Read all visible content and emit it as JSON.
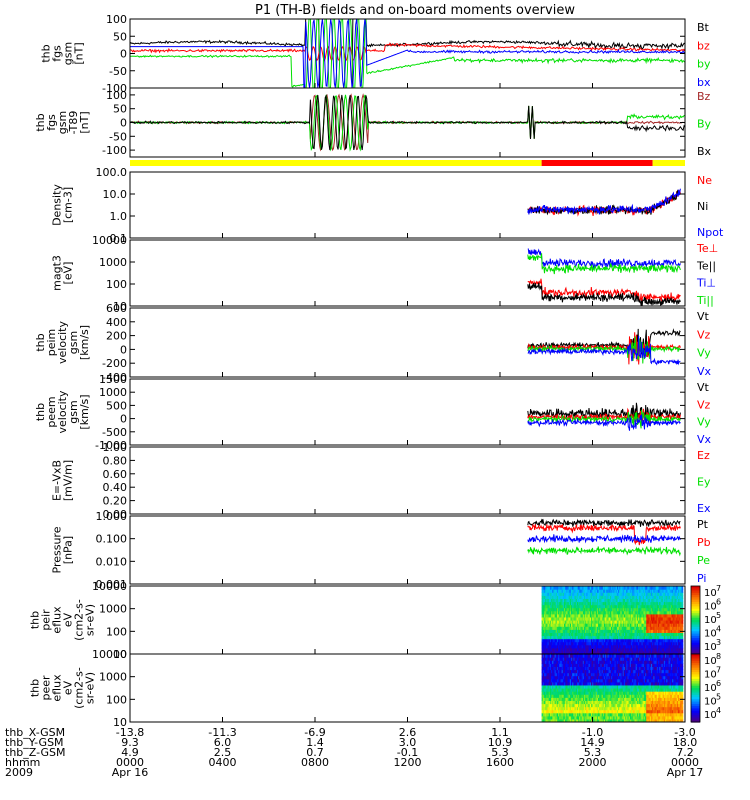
{
  "title": "P1 (TH-B) fields and on-board moments overview",
  "colors": {
    "black": "#000000",
    "red": "#ff0000",
    "green": "#00e000",
    "blue": "#0000ff",
    "yellow": "#ffff00"
  },
  "chart_data": [
    {
      "type": "line",
      "ylabel": [
        "thb",
        "fgs",
        "gsm",
        "[nT]"
      ],
      "ylim": [
        -100,
        100
      ],
      "yticks": [
        "100",
        "50",
        "0",
        "-50",
        "-100"
      ],
      "series": [
        {
          "name": "Bt",
          "color": "#000000"
        },
        {
          "name": "bz",
          "color": "#ff0000"
        },
        {
          "name": "by",
          "color": "#00e000"
        },
        {
          "name": "bx",
          "color": "#0000ff"
        }
      ]
    },
    {
      "type": "line",
      "ylabel": [
        "thb",
        "fgs",
        "gsm",
        "-T89",
        "[nT]"
      ],
      "ylim": [
        -125,
        125
      ],
      "yticks": [
        "100",
        "50",
        "0",
        "-50",
        "-100"
      ],
      "series": [
        {
          "name": "Bz",
          "color": "#a52a2a"
        },
        {
          "name": "By",
          "color": "#00e000"
        },
        {
          "name": "Bx",
          "color": "#000000"
        }
      ]
    },
    {
      "type": "line",
      "ylabel": [
        "Density",
        "[cm-3]"
      ],
      "ylim": [
        0.1,
        100
      ],
      "scale": "log",
      "yticks": [
        "100.0",
        "10.0",
        "1.0",
        "0.1"
      ],
      "series": [
        {
          "name": "Ne",
          "color": "#ff0000"
        },
        {
          "name": "Ni",
          "color": "#000000"
        },
        {
          "name": "Npot",
          "color": "#0000ff"
        }
      ]
    },
    {
      "type": "line",
      "ylabel": [
        "magt3",
        "[eV]"
      ],
      "ylim": [
        10,
        10000
      ],
      "scale": "log",
      "yticks": [
        "10000",
        "1000",
        "100",
        "10"
      ],
      "series": [
        {
          "name": "Te⊥",
          "color": "#ff0000"
        },
        {
          "name": "Te||",
          "color": "#000000"
        },
        {
          "name": "Ti⊥",
          "color": "#0000ff"
        },
        {
          "name": "Ti||",
          "color": "#00e000"
        }
      ]
    },
    {
      "type": "line",
      "ylabel": [
        "thb",
        "peim",
        "velocity",
        "gsm",
        "[km/s]"
      ],
      "ylim": [
        -400,
        600
      ],
      "yticks": [
        "600",
        "400",
        "200",
        "0",
        "-200",
        "-400"
      ],
      "series": [
        {
          "name": "Vt",
          "color": "#000000"
        },
        {
          "name": "Vz",
          "color": "#ff0000"
        },
        {
          "name": "Vy",
          "color": "#00e000"
        },
        {
          "name": "Vx",
          "color": "#0000ff"
        }
      ]
    },
    {
      "type": "line",
      "ylabel": [
        "thb",
        "peem",
        "velocity",
        "gsm",
        "[km/s]"
      ],
      "ylim": [
        -1000,
        1500
      ],
      "yticks": [
        "1500",
        "1000",
        "500",
        "0",
        "-500",
        "-1000"
      ],
      "series": [
        {
          "name": "Vt",
          "color": "#000000"
        },
        {
          "name": "Vz",
          "color": "#ff0000"
        },
        {
          "name": "Vy",
          "color": "#00e000"
        },
        {
          "name": "Vx",
          "color": "#0000ff"
        }
      ]
    },
    {
      "type": "line",
      "ylabel": [
        "E=-VxB",
        "[mV/m]"
      ],
      "ylim": [
        0,
        1
      ],
      "yticks": [
        "1.00",
        "0.80",
        "0.60",
        "0.40",
        "0.20",
        "0.00"
      ],
      "series": [
        {
          "name": "Ez",
          "color": "#ff0000"
        },
        {
          "name": "Ey",
          "color": "#00e000"
        },
        {
          "name": "Ex",
          "color": "#0000ff"
        }
      ]
    },
    {
      "type": "line",
      "ylabel": [
        "Pressure",
        "[nPa]"
      ],
      "ylim": [
        0.001,
        1
      ],
      "scale": "log",
      "yticks": [
        "1.000",
        "0.100",
        "0.010",
        "0.001"
      ],
      "series": [
        {
          "name": "Pt",
          "color": "#000000"
        },
        {
          "name": "Pb",
          "color": "#ff0000"
        },
        {
          "name": "Pe",
          "color": "#00e000"
        },
        {
          "name": "Pi",
          "color": "#0000ff"
        }
      ]
    },
    {
      "type": "heatmap",
      "ylabel": [
        "thb",
        "peir",
        "eflux",
        "eV",
        "(cm2-s-",
        "sr-eV)"
      ],
      "ylim": [
        10,
        10000
      ],
      "scale": "log",
      "yticks": [
        "10000",
        "1000",
        "100",
        "10"
      ],
      "colorbar_ticks": [
        "10",
        "10",
        "10",
        "10",
        "10"
      ],
      "colorbar_exps": [
        "7",
        "6",
        "5",
        "4",
        "3"
      ]
    },
    {
      "type": "heatmap",
      "ylabel": [
        "thb",
        "peer",
        "eflux",
        "eV",
        "(cm2-s-",
        "sr-eV)"
      ],
      "ylim": [
        10,
        10000
      ],
      "scale": "log",
      "yticks": [
        "10000",
        "1000",
        "100",
        "10"
      ],
      "colorbar_ticks": [
        "10",
        "10",
        "10",
        "10",
        "10"
      ],
      "colorbar_exps": [
        "8",
        "7",
        "6",
        "5",
        "4"
      ]
    }
  ],
  "xaxis": {
    "row_labels": [
      "thb_X-GSM",
      "thb_Y-GSM",
      "thb_Z-GSM",
      "hhmm",
      "2009"
    ],
    "columns": [
      [
        "-13.8",
        "9.3",
        "4.9",
        "0000",
        "Apr 16"
      ],
      [
        "-11.3",
        "6.0",
        "2.5",
        "0400",
        ""
      ],
      [
        "-6.9",
        "1.4",
        "0.7",
        "0800",
        ""
      ],
      [
        "2.6",
        "3.0",
        "-0.1",
        "1200",
        ""
      ],
      [
        "1.1",
        "10.9",
        "5.3",
        "1600",
        ""
      ],
      [
        "-1.0",
        "14.9",
        "5.3",
        "2000",
        ""
      ],
      [
        "-3.0",
        "18.0",
        "7.2",
        "0000",
        "Apr 17"
      ]
    ],
    "hours": [
      0,
      4,
      8,
      12,
      16,
      20,
      24
    ]
  },
  "mode_bar": {
    "segments": [
      {
        "start": 0,
        "end": 17.8,
        "color": "#ffff00"
      },
      {
        "start": 17.8,
        "end": 22.6,
        "color": "#ff0000"
      },
      {
        "start": 22.6,
        "end": 24,
        "color": "#ffff00"
      }
    ]
  }
}
